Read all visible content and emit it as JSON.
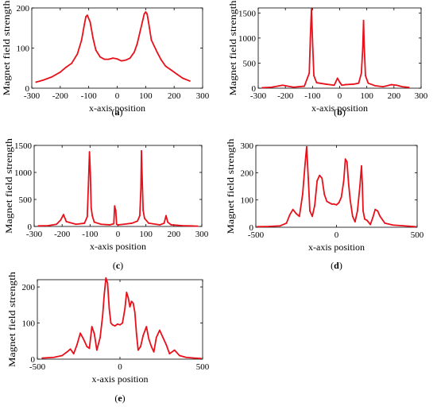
{
  "chart_data": [
    {
      "id": "a",
      "panel_label": "a",
      "type": "line",
      "xlabel": "x-axis position",
      "ylabel": "Magnet field strength",
      "xlim": [
        -300,
        300
      ],
      "ylim": [
        0,
        200
      ],
      "xticks": [
        -300,
        -200,
        -100,
        0,
        100,
        200,
        300
      ],
      "yticks": [
        0,
        100,
        200
      ],
      "series": [
        {
          "color": "#e8101a",
          "x": [
            -285,
            -260,
            -230,
            -200,
            -180,
            -160,
            -140,
            -125,
            -115,
            -110,
            -105,
            -95,
            -85,
            -75,
            -60,
            -45,
            -30,
            -15,
            0,
            15,
            30,
            45,
            60,
            70,
            80,
            90,
            95,
            100,
            105,
            110,
            120,
            140,
            155,
            170,
            190,
            210,
            230,
            255
          ],
          "y": [
            15,
            20,
            28,
            40,
            52,
            62,
            85,
            120,
            160,
            178,
            182,
            165,
            125,
            95,
            78,
            72,
            72,
            75,
            73,
            68,
            70,
            75,
            90,
            110,
            140,
            170,
            185,
            190,
            185,
            165,
            120,
            90,
            70,
            55,
            45,
            35,
            25,
            18
          ]
        }
      ]
    },
    {
      "id": "b",
      "panel_label": "b",
      "type": "line",
      "xlabel": "x-axis position",
      "ylabel": "Magnet field strength",
      "xlim": [
        -300,
        300
      ],
      "ylim": [
        0,
        1600
      ],
      "xticks": [
        -300,
        -200,
        -100,
        0,
        100,
        200,
        300
      ],
      "yticks": [
        0,
        500,
        1000,
        1500
      ],
      "series": [
        {
          "color": "#e8101a",
          "x": [
            -285,
            -250,
            -210,
            -170,
            -130,
            -112,
            -108,
            -104,
            -100,
            -95,
            -85,
            -50,
            -20,
            -8,
            0,
            8,
            20,
            50,
            70,
            80,
            85,
            88,
            90,
            95,
            105,
            130,
            160,
            190,
            210,
            230,
            255
          ],
          "y": [
            10,
            20,
            60,
            20,
            40,
            300,
            1000,
            1580,
            950,
            250,
            110,
            80,
            60,
            200,
            120,
            60,
            70,
            80,
            100,
            300,
            800,
            1350,
            900,
            250,
            100,
            50,
            30,
            70,
            60,
            30,
            15
          ]
        }
      ]
    },
    {
      "id": "c",
      "panel_label": "c",
      "type": "line",
      "xlabel": "x-axis position",
      "ylabel": "Magnet field strength",
      "xlim": [
        -300,
        300
      ],
      "ylim": [
        0,
        1500
      ],
      "xticks": [
        -300,
        -200,
        -100,
        0,
        100,
        200,
        300
      ],
      "yticks": [
        0,
        500,
        1000,
        1500
      ],
      "series": [
        {
          "color": "#e8101a",
          "x": [
            -285,
            -250,
            -220,
            -205,
            -195,
            -185,
            -150,
            -120,
            -110,
            -105,
            -102,
            -99,
            -96,
            -92,
            -85,
            -60,
            -30,
            -15,
            -12,
            -10,
            -8,
            -5,
            0,
            20,
            50,
            70,
            78,
            82,
            84,
            86,
            90,
            95,
            110,
            150,
            165,
            172,
            178,
            190,
            230,
            260,
            285
          ],
          "y": [
            10,
            15,
            40,
            120,
            220,
            90,
            40,
            60,
            180,
            900,
            1380,
            1000,
            350,
            200,
            80,
            40,
            30,
            50,
            380,
            330,
            300,
            40,
            30,
            40,
            60,
            100,
            200,
            700,
            1400,
            1000,
            300,
            150,
            60,
            30,
            60,
            200,
            80,
            30,
            15,
            10,
            5
          ]
        }
      ]
    },
    {
      "id": "d",
      "panel_label": "d",
      "type": "line",
      "xlabel": "x-axis position",
      "ylabel": "Magnet field strength",
      "xlim": [
        -500,
        500
      ],
      "ylim": [
        0,
        300
      ],
      "xticks": [
        -500,
        0,
        500
      ],
      "yticks": [
        0,
        100,
        200,
        300
      ],
      "series": [
        {
          "color": "#e8101a",
          "x": [
            -490,
            -420,
            -350,
            -310,
            -290,
            -270,
            -250,
            -230,
            -210,
            -195,
            -185,
            -175,
            -165,
            -150,
            -135,
            -120,
            -105,
            -90,
            -75,
            -60,
            -45,
            -30,
            -15,
            0,
            15,
            30,
            45,
            55,
            65,
            75,
            85,
            100,
            115,
            130,
            145,
            155,
            160,
            165,
            175,
            190,
            210,
            225,
            240,
            255,
            270,
            300,
            350,
            420,
            490
          ],
          "y": [
            2,
            3,
            5,
            15,
            45,
            65,
            50,
            40,
            120,
            230,
            295,
            180,
            60,
            40,
            80,
            170,
            190,
            180,
            120,
            95,
            90,
            85,
            85,
            82,
            90,
            110,
            170,
            250,
            240,
            160,
            100,
            40,
            20,
            60,
            150,
            225,
            160,
            60,
            30,
            25,
            10,
            35,
            65,
            60,
            40,
            15,
            8,
            5,
            2
          ]
        }
      ]
    },
    {
      "id": "e",
      "panel_label": "e",
      "type": "line",
      "xlabel": "x-axis position",
      "ylabel": "Magnet field strength",
      "xlim": [
        -500,
        500
      ],
      "ylim": [
        0,
        220
      ],
      "xticks": [
        -500,
        0,
        500
      ],
      "yticks": [
        0,
        100,
        200
      ],
      "series": [
        {
          "color": "#e8101a",
          "x": [
            -470,
            -400,
            -350,
            -320,
            -300,
            -280,
            -260,
            -240,
            -220,
            -200,
            -185,
            -170,
            -155,
            -140,
            -120,
            -105,
            -95,
            -85,
            -75,
            -65,
            -55,
            -45,
            -30,
            -15,
            0,
            15,
            30,
            40,
            50,
            60,
            70,
            80,
            90,
            100,
            110,
            125,
            140,
            160,
            175,
            190,
            205,
            220,
            240,
            260,
            280,
            300,
            330,
            360,
            400,
            450,
            490
          ],
          "y": [
            3,
            5,
            10,
            20,
            28,
            15,
            40,
            72,
            55,
            35,
            30,
            90,
            70,
            25,
            60,
            120,
            180,
            225,
            210,
            140,
            100,
            95,
            92,
            97,
            95,
            100,
            140,
            185,
            170,
            145,
            160,
            155,
            130,
            70,
            25,
            35,
            65,
            90,
            55,
            35,
            20,
            60,
            80,
            60,
            40,
            15,
            25,
            10,
            5,
            3,
            2
          ]
        }
      ]
    }
  ]
}
